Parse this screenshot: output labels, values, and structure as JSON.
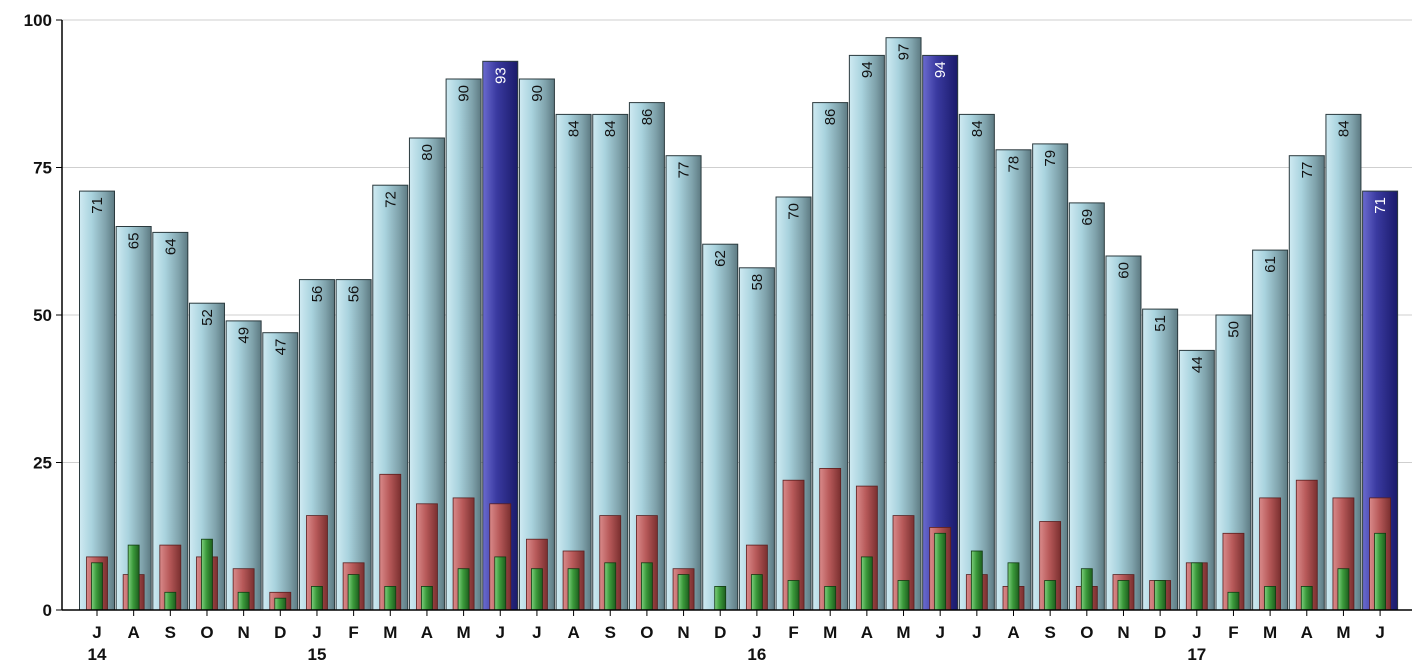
{
  "chart_data": {
    "type": "bar",
    "categories": [
      "J",
      "A",
      "S",
      "O",
      "N",
      "D",
      "J",
      "F",
      "M",
      "A",
      "M",
      "J",
      "J",
      "A",
      "S",
      "O",
      "N",
      "D",
      "J",
      "F",
      "M",
      "A",
      "M",
      "J",
      "J",
      "A",
      "S",
      "O",
      "N",
      "D",
      "J",
      "F",
      "M",
      "A",
      "M",
      "J"
    ],
    "year_labels": [
      {
        "index": 0,
        "label": "14"
      },
      {
        "index": 6,
        "label": "15"
      },
      {
        "index": 18,
        "label": "16"
      },
      {
        "index": 30,
        "label": "17"
      }
    ],
    "ylim": [
      0,
      100
    ],
    "yticks": [
      0,
      25,
      50,
      75,
      100
    ],
    "grid": true,
    "series": [
      {
        "values": [
          71,
          65,
          64,
          52,
          49,
          47,
          56,
          56,
          72,
          80,
          90,
          93,
          90,
          84,
          84,
          86,
          77,
          62,
          58,
          70,
          86,
          94,
          97,
          94,
          84,
          78,
          79,
          69,
          60,
          51,
          44,
          50,
          61,
          77,
          84,
          71
        ],
        "show_labels": true,
        "highlight_indices": [
          11,
          23,
          35
        ]
      },
      {
        "values": [
          9,
          6,
          11,
          9,
          7,
          3,
          16,
          8,
          23,
          18,
          19,
          18,
          12,
          10,
          16,
          16,
          7,
          0,
          11,
          22,
          24,
          21,
          16,
          14,
          6,
          4,
          15,
          4,
          6,
          5,
          8,
          13,
          19,
          22,
          19,
          19
        ]
      },
      {
        "values": [
          8,
          11,
          3,
          12,
          3,
          2,
          4,
          6,
          4,
          4,
          7,
          9,
          7,
          7,
          8,
          8,
          6,
          4,
          6,
          5,
          4,
          9,
          5,
          13,
          10,
          8,
          5,
          7,
          5,
          5,
          8,
          3,
          4,
          4,
          7,
          13
        ]
      }
    ],
    "colors": {
      "main": "#a9d3de",
      "highlight": "#3a3aa0",
      "red": "#b85a5a",
      "green": "#3b9a3b",
      "grid": "#cfcfcf",
      "axis": "#000000",
      "label": "#111111",
      "highlight_label": "#ffffff"
    }
  }
}
